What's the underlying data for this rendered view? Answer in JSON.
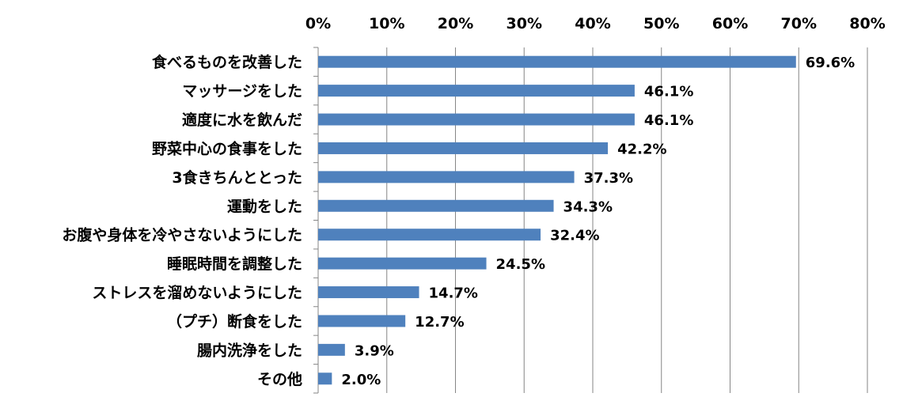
{
  "chart_data": {
    "type": "bar",
    "orientation": "horizontal",
    "categories": [
      "食べるものを改善した",
      "マッサージをした",
      "適度に水を飲んだ",
      "野菜中心の食事をした",
      "3食きちんととった",
      "運動をした",
      "お腹や身体を冷やさないようにした",
      "睡眠時間を調整した",
      "ストレスを溜めないようにした",
      "（プチ）断食をした",
      "腸内洗浄をした",
      "その他"
    ],
    "values": [
      69.6,
      46.1,
      46.1,
      42.2,
      37.3,
      34.3,
      32.4,
      24.5,
      14.7,
      12.7,
      3.9,
      2.0
    ],
    "data_labels": [
      "69.6%",
      "46.1%",
      "46.1%",
      "42.2%",
      "37.3%",
      "34.3%",
      "32.4%",
      "24.5%",
      "14.7%",
      "12.7%",
      "3.9%",
      "2.0%"
    ],
    "x_ticks": [
      "0%",
      "10%",
      "20%",
      "30%",
      "40%",
      "50%",
      "60%",
      "70%",
      "80%"
    ],
    "xlim": [
      0,
      80
    ],
    "x_axis_position": "top",
    "grid": true,
    "legend": "none",
    "title": "",
    "xlabel": "",
    "ylabel": "",
    "bar_color": "#4F81BD",
    "grid_color": "#868686"
  }
}
